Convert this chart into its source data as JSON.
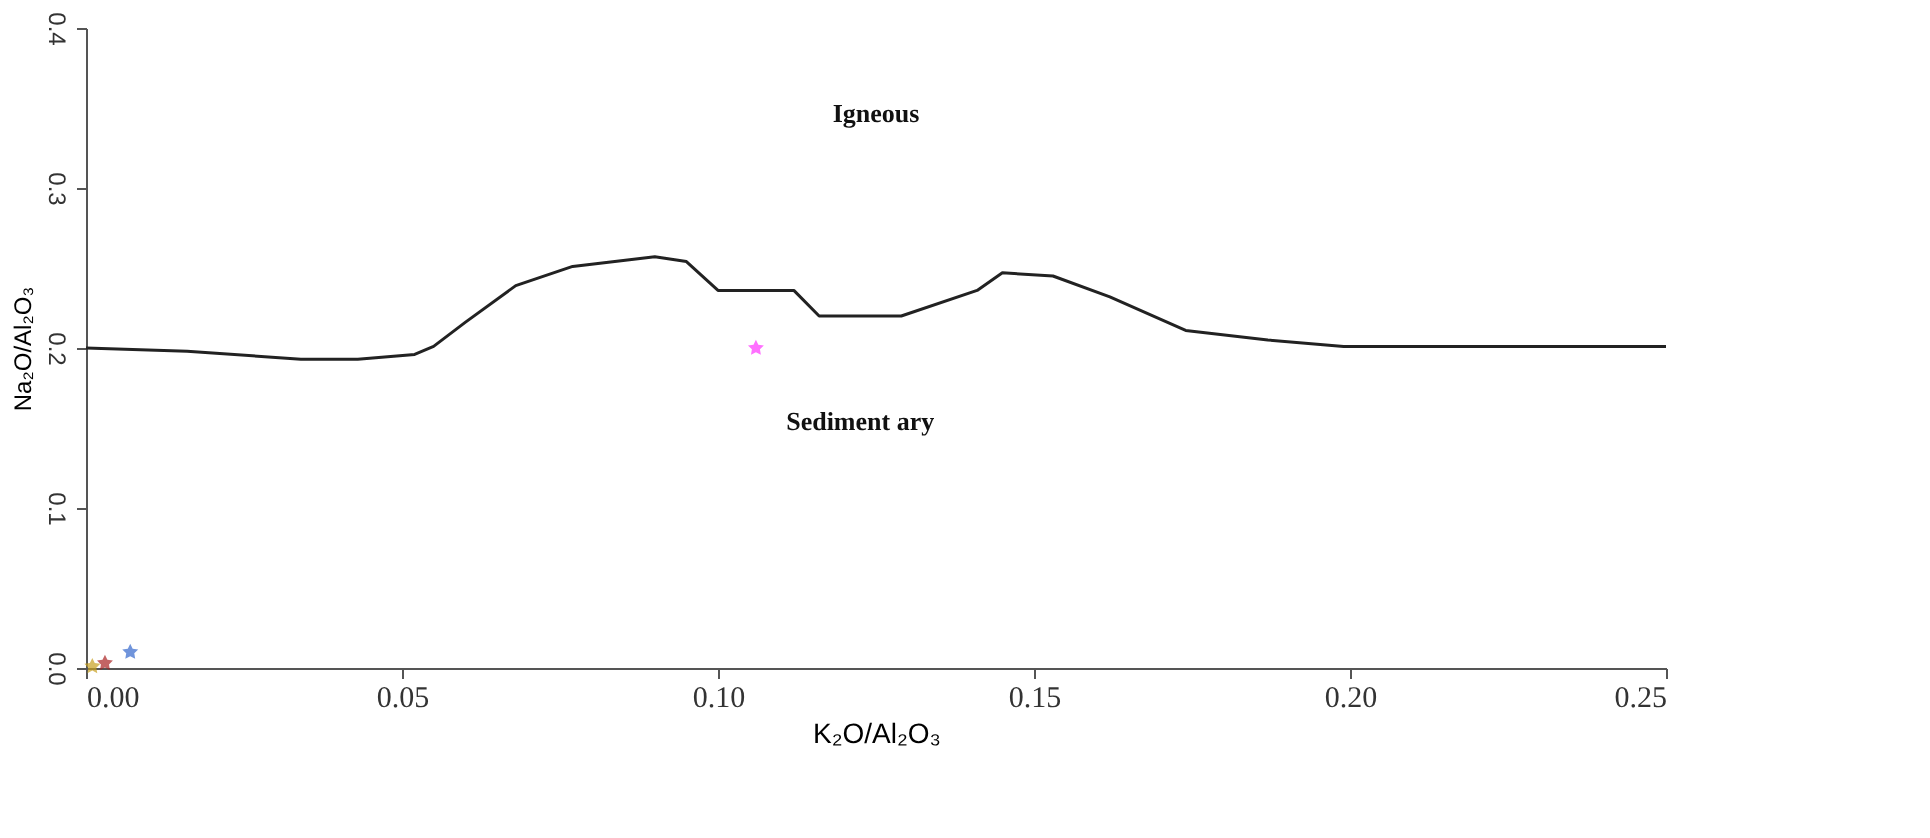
{
  "chart_data": {
    "type": "scatter",
    "xlabel": "K₂O/Al₂O₃",
    "ylabel": "Na₂O/Al₂O₃",
    "xlim": [
      0,
      0.25
    ],
    "ylim": [
      0,
      0.4
    ],
    "xticks": [
      {
        "value": 0,
        "label": "0.00"
      },
      {
        "value": 0.05,
        "label": "0.05"
      },
      {
        "value": 0.1,
        "label": "0.10"
      },
      {
        "value": 0.15,
        "label": "0.15"
      },
      {
        "value": 0.2,
        "label": "0.20"
      },
      {
        "value": 0.25,
        "label": "0.25"
      }
    ],
    "yticks": [
      {
        "value": 0,
        "label": "0.0"
      },
      {
        "value": 0.1,
        "label": "0.1"
      },
      {
        "value": 0.2,
        "label": "0.2"
      },
      {
        "value": 0.3,
        "label": "0.3"
      },
      {
        "value": 0.4,
        "label": "0.4"
      }
    ],
    "grid": false,
    "marker": "star",
    "annotations": [
      "Igneous",
      "Sediment ary"
    ],
    "series": [
      {
        "type": "line",
        "marker": "none",
        "line_style": "solid",
        "color": "#222222",
        "x": [
          0,
          0.016,
          0.034,
          0.043,
          0.052,
          0.055,
          0.06,
          0.068,
          0.077,
          0.09,
          0.095,
          0.1,
          0.112,
          0.116,
          0.129,
          0.141,
          0.145,
          0.153,
          0.162,
          0.174,
          0.187,
          0.199,
          0.25
        ],
        "values": [
          0.2,
          0.198,
          0.193,
          0.193,
          0.196,
          0.201,
          0.216,
          0.239,
          0.251,
          0.257,
          0.254,
          0.236,
          0.236,
          0.22,
          0.22,
          0.236,
          0.247,
          0.245,
          0.232,
          0.211,
          0.205,
          0.201,
          0.201
        ]
      },
      {
        "color": "#ff33ff",
        "x": [
          0.106
        ],
        "values": [
          0.2
        ]
      },
      {
        "color": "#3366cc",
        "x": [
          0.007
        ],
        "values": [
          0.01
        ]
      },
      {
        "color": "#aa2222",
        "x": [
          0.003
        ],
        "values": [
          0.003
        ]
      },
      {
        "color": "#c8a020",
        "x": [
          0.001
        ],
        "values": [
          0.001
        ]
      }
    ]
  }
}
